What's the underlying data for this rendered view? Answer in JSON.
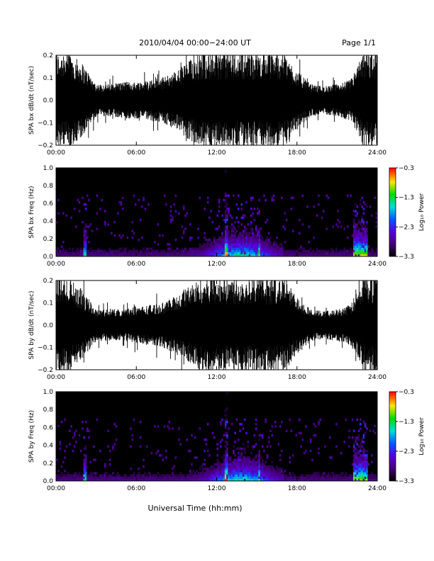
{
  "header": {
    "title": "2010/04/04  00:00−24:00 UT",
    "page": "Page 1/1"
  },
  "xlabel": "Universal Time (hh:mm)",
  "chart_data": [
    {
      "type": "line",
      "name": "panel1",
      "ylabel": "SPA bx dB/dt (nT/sec)",
      "xlim": [
        0,
        24
      ],
      "ylim": [
        -0.2,
        0.2
      ],
      "xticks": [
        "00:00",
        "06:00",
        "12:00",
        "18:00",
        "24:00"
      ],
      "yticks": [
        "−0.2",
        "−0.1",
        "0.0",
        "0.1",
        "0.2"
      ],
      "envelope": {
        "hours": [
          0,
          1,
          2,
          3,
          4,
          5,
          6,
          7,
          8,
          9,
          10,
          11,
          12,
          13,
          14,
          15,
          16,
          17,
          18,
          19,
          20,
          21,
          22,
          23,
          24
        ],
        "amplitude": [
          0.2,
          0.2,
          0.15,
          0.06,
          0.06,
          0.07,
          0.07,
          0.08,
          0.09,
          0.12,
          0.17,
          0.2,
          0.2,
          0.2,
          0.2,
          0.2,
          0.2,
          0.2,
          0.12,
          0.06,
          0.05,
          0.06,
          0.08,
          0.2,
          0.2
        ]
      }
    },
    {
      "type": "heatmap",
      "name": "panel2",
      "ylabel": "SPA bx Freq (Hz)",
      "xlim": [
        0,
        24
      ],
      "ylim": [
        0,
        1.0
      ],
      "xticks": [
        "00:00",
        "06:00",
        "12:00",
        "18:00",
        "24:00"
      ],
      "yticks": [
        "0.0",
        "0.2",
        "0.4",
        "0.6",
        "0.8",
        "1.0"
      ],
      "colorbar": {
        "label": "Log₁₀ Power",
        "range": [
          -3.3,
          -0.3
        ],
        "ticks": [
          "−0.3",
          "−1.3",
          "−2.3",
          "−3.3"
        ]
      }
    },
    {
      "type": "line",
      "name": "panel3",
      "ylabel": "SPA by dB/dt (nT/sec)",
      "xlim": [
        0,
        24
      ],
      "ylim": [
        -0.2,
        0.2
      ],
      "xticks": [
        "00:00",
        "06:00",
        "12:00",
        "18:00",
        "24:00"
      ],
      "yticks": [
        "−0.2",
        "−0.1",
        "0.0",
        "0.1",
        "0.2"
      ],
      "envelope": {
        "hours": [
          0,
          1,
          2,
          3,
          4,
          5,
          6,
          7,
          8,
          9,
          10,
          11,
          12,
          13,
          14,
          15,
          16,
          17,
          18,
          19,
          20,
          21,
          22,
          23,
          24
        ],
        "amplitude": [
          0.2,
          0.2,
          0.14,
          0.06,
          0.06,
          0.06,
          0.07,
          0.08,
          0.09,
          0.12,
          0.17,
          0.2,
          0.2,
          0.2,
          0.2,
          0.2,
          0.2,
          0.2,
          0.12,
          0.06,
          0.05,
          0.06,
          0.08,
          0.2,
          0.2
        ]
      }
    },
    {
      "type": "heatmap",
      "name": "panel4",
      "ylabel": "SPA by Freq (Hz)",
      "xlim": [
        0,
        24
      ],
      "ylim": [
        0,
        1.0
      ],
      "xticks": [
        "00:00",
        "06:00",
        "12:00",
        "18:00",
        "24:00"
      ],
      "yticks": [
        "0.0",
        "0.2",
        "0.4",
        "0.6",
        "0.8",
        "1.0"
      ],
      "colorbar": {
        "label": "Log₁₀ Power",
        "range": [
          -3.3,
          -0.3
        ],
        "ticks": [
          "−0.3",
          "−1.3",
          "−2.3",
          "−3.3"
        ]
      }
    }
  ],
  "colors": {
    "background": "#ffffff",
    "trace": "#000000",
    "spectrogram_bg": "#000000"
  }
}
